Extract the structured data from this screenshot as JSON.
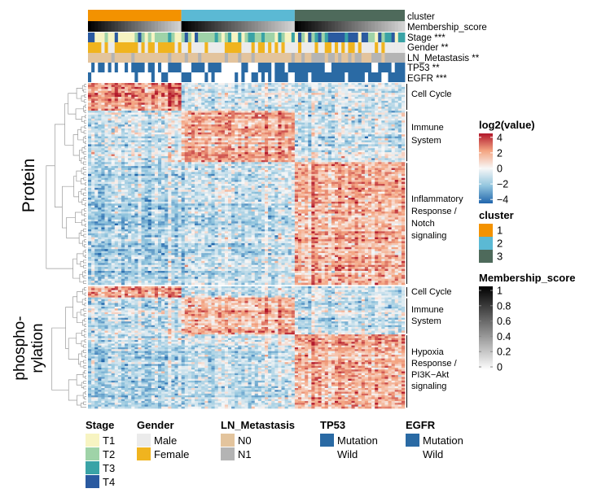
{
  "chart_data": {
    "type": "heatmap",
    "title": "",
    "color_scale": {
      "title": "log2(value)",
      "range": [
        -4.5,
        4.5
      ],
      "ticks": [
        4,
        2,
        0,
        -2,
        -4
      ],
      "tick_labels": [
        "4",
        "2",
        "0",
        "−2",
        "−4"
      ],
      "low_color": "#2166ac",
      "mid_color": "#f7f7f7",
      "high_color": "#b2182b"
    },
    "membership_scale": {
      "title": "Membership_score",
      "range": [
        0,
        1
      ],
      "ticks": [
        1,
        0.8,
        0.6,
        0.4,
        0.2,
        0
      ],
      "tick_labels": [
        "1",
        "0.8",
        "0.6",
        "0.4",
        "0.2",
        "0"
      ]
    },
    "clusters": [
      {
        "name": "1",
        "label": "1",
        "color": "#f39200",
        "n_samples": 28
      },
      {
        "name": "2",
        "label": "2",
        "color": "#5bb9d4",
        "n_samples": 34
      },
      {
        "name": "3",
        "label": "3",
        "color": "#4e6a5b",
        "n_samples": 33
      }
    ],
    "annotation_tracks": [
      {
        "key": "cluster",
        "label": "cluster"
      },
      {
        "key": "membership",
        "label": "Membership_score"
      },
      {
        "key": "stage",
        "label": "Stage ***"
      },
      {
        "key": "gender",
        "label": "Gender **"
      },
      {
        "key": "ln",
        "label": "LN_Metastasis **"
      },
      {
        "key": "tp53",
        "label": "TP53 **"
      },
      {
        "key": "egfr",
        "label": "EGFR ***"
      }
    ],
    "modalities": [
      {
        "name": "Protein",
        "label": "Protein",
        "label_lines": [
          "Protein"
        ],
        "modules": [
          {
            "lines": [
              "Cell Cycle"
            ],
            "rows": 14,
            "high_cluster": 1
          },
          {
            "lines": [
              "Immune",
              "System"
            ],
            "rows": 26,
            "high_cluster": 2
          },
          {
            "lines": [
              "Inflammatory",
              "Response /",
              "Notch",
              "signaling"
            ],
            "rows": 62,
            "high_cluster": 3
          }
        ]
      },
      {
        "name": "phosphorylation",
        "label": "phospho-rylation",
        "label_lines": [
          "phospho-",
          "rylation"
        ],
        "modules": [
          {
            "lines": [
              "Cell Cycle"
            ],
            "rows": 6,
            "high_cluster": 1
          },
          {
            "lines": [
              "Immune",
              "System"
            ],
            "rows": 20,
            "high_cluster": 2
          },
          {
            "lines": [
              "Hypoxia",
              "Response /",
              "PI3K−Akt",
              "signaling"
            ],
            "rows": 40,
            "high_cluster": 3
          }
        ]
      }
    ],
    "legends": {
      "stage": {
        "title": "Stage",
        "items": [
          {
            "label": "T1",
            "color": "#f7f4c2"
          },
          {
            "label": "T2",
            "color": "#9fd3a8"
          },
          {
            "label": "T3",
            "color": "#3aa3a6"
          },
          {
            "label": "T4",
            "color": "#2a5aa0"
          }
        ]
      },
      "gender": {
        "title": "Gender",
        "items": [
          {
            "label": "Male",
            "color": "#ebebeb"
          },
          {
            "label": "Female",
            "color": "#f0b41f"
          }
        ]
      },
      "ln": {
        "title": "LN_Metastasis",
        "items": [
          {
            "label": "N0",
            "color": "#e3c49d"
          },
          {
            "label": "N1",
            "color": "#b4b4b4"
          }
        ]
      },
      "tp53": {
        "title": "TP53",
        "items": [
          {
            "label": "Mutation",
            "color": "#2a6aa4"
          },
          {
            "label": "Wild",
            "color": "#ffffff"
          }
        ]
      },
      "egfr": {
        "title": "EGFR",
        "items": [
          {
            "label": "Mutation",
            "color": "#2a6aa4"
          },
          {
            "label": "Wild",
            "color": "#ffffff"
          }
        ]
      }
    }
  }
}
